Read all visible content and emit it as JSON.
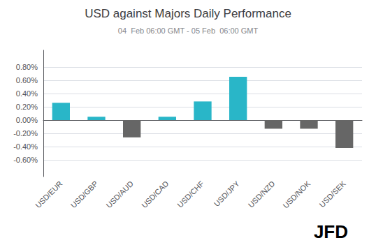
{
  "chart_data": {
    "type": "bar",
    "title": "USD against Majors Daily Performance",
    "subtitle": "04  Feb 06:00 GMT - 05 Feb  06:00 GMT",
    "annotation": "JFD",
    "categories": [
      "USD/EUR",
      "USD/GBP",
      "USD/AUD",
      "USD/CAD",
      "USD/CHF",
      "USD/JPY",
      "USD/NZD",
      "USD/NOK",
      "USD/SEK"
    ],
    "values": [
      0.0026,
      0.0005,
      -0.0026,
      0.0005,
      0.0028,
      0.0065,
      -0.0013,
      -0.0013,
      -0.0042
    ],
    "colors": [
      "#29b6c8",
      "#29b6c8",
      "#666666",
      "#29b6c8",
      "#29b6c8",
      "#29b6c8",
      "#666666",
      "#666666",
      "#666666"
    ],
    "ylim": [
      -0.0085,
      0.0105
    ],
    "yticks": [
      {
        "value": -0.006,
        "label": "-0.60%"
      },
      {
        "value": -0.004,
        "label": "-0.40%"
      },
      {
        "value": -0.002,
        "label": "-0.20%"
      },
      {
        "value": 0.0,
        "label": "0.00%"
      },
      {
        "value": 0.002,
        "label": "0.20%"
      },
      {
        "value": 0.004,
        "label": "0.40%"
      },
      {
        "value": 0.006,
        "label": "0.60%"
      },
      {
        "value": 0.008,
        "label": "0.80%"
      }
    ],
    "grid": true
  }
}
